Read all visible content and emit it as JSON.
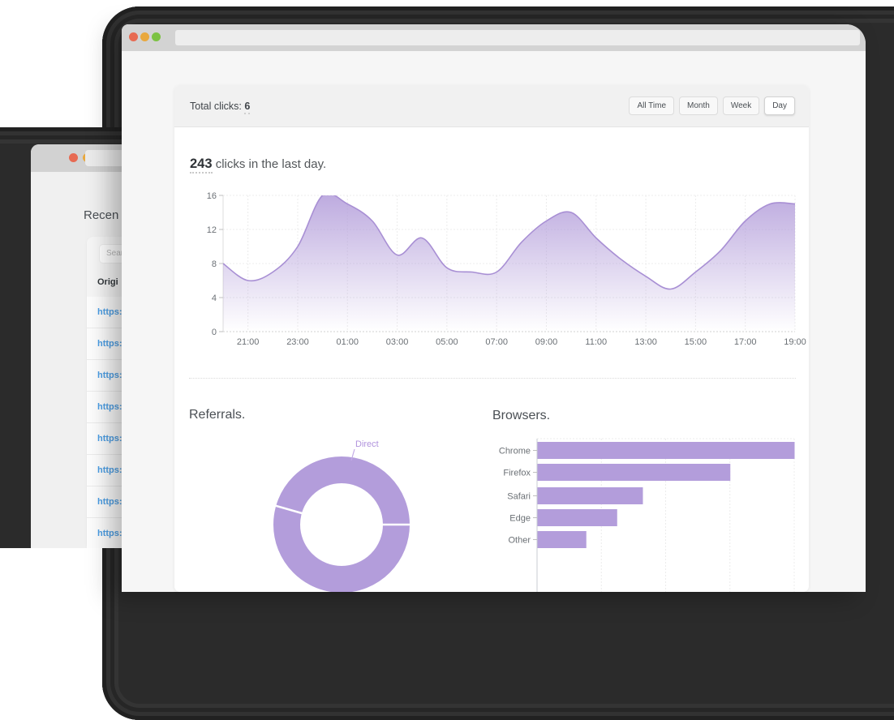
{
  "background_window": {
    "heading": "Recen",
    "search_placeholder": "Sear",
    "table_header": "Origi",
    "rows": [
      "https:",
      "https:",
      "https:",
      "https:",
      "https:",
      "https:",
      "https:",
      "https:"
    ]
  },
  "foreground_window": {
    "header": {
      "total_clicks_label": "Total clicks: ",
      "total_clicks_value": "6",
      "range_buttons": [
        "All Time",
        "Month",
        "Week",
        "Day"
      ],
      "active_range": "Day"
    },
    "headline": {
      "count": "243",
      "text": " clicks in the last day."
    },
    "referrals_title": "Referrals.",
    "browsers_title": "Browsers."
  },
  "colors": {
    "accent_purple": "#b39ddb",
    "area_stroke": "#a88fd4",
    "area_fill_top": "rgba(177,155,217,0.85)",
    "grid": "#ececec",
    "axis": "#dcdcdc",
    "tick_label": "#6b7075",
    "link_blue": "#4c9fe6",
    "pie_label": "#b193dd",
    "dot_red": "#e76a52",
    "dot_yellow": "#e9a83d",
    "dot_green": "#7cc243"
  },
  "chart_data": [
    {
      "type": "area",
      "title": "243 clicks in the last day.",
      "x": [
        "20:00",
        "21:00",
        "22:00",
        "23:00",
        "00:00",
        "01:00",
        "02:00",
        "03:00",
        "04:00",
        "05:00",
        "06:00",
        "07:00",
        "08:00",
        "09:00",
        "10:00",
        "11:00",
        "12:00",
        "13:00",
        "14:00",
        "15:00",
        "16:00",
        "17:00",
        "18:00",
        "19:00"
      ],
      "values": [
        8,
        6,
        7,
        10,
        16,
        15,
        13,
        9,
        11,
        7.5,
        7,
        7,
        10.5,
        13,
        14,
        11,
        8.5,
        6.5,
        5,
        7,
        9.5,
        13,
        15,
        15
      ],
      "x_tick_labels": [
        "21:00",
        "23:00",
        "01:00",
        "03:00",
        "05:00",
        "07:00",
        "09:00",
        "11:00",
        "13:00",
        "15:00",
        "17:00",
        "19:00"
      ],
      "y_ticks": [
        0,
        4,
        8,
        12,
        16
      ],
      "ylim": [
        0,
        16
      ],
      "grid": true,
      "legend": false
    },
    {
      "type": "pie",
      "title": "Referrals.",
      "visible_labels": [
        "Direct"
      ],
      "divider_angles_deg": [
        0,
        164
      ],
      "values_estimated_pct": {
        "Direct": 46
      },
      "donut": true
    },
    {
      "type": "bar",
      "title": "Browsers.",
      "orientation": "horizontal",
      "categories": [
        "Chrome",
        "Firefox",
        "Safari",
        "Edge",
        "Other"
      ],
      "values": [
        100,
        75,
        41,
        31,
        19
      ],
      "xlim": [
        0,
        100
      ],
      "gridline_values": [
        0,
        25,
        50,
        75,
        100
      ],
      "value_axis_labels_visible": false
    }
  ]
}
